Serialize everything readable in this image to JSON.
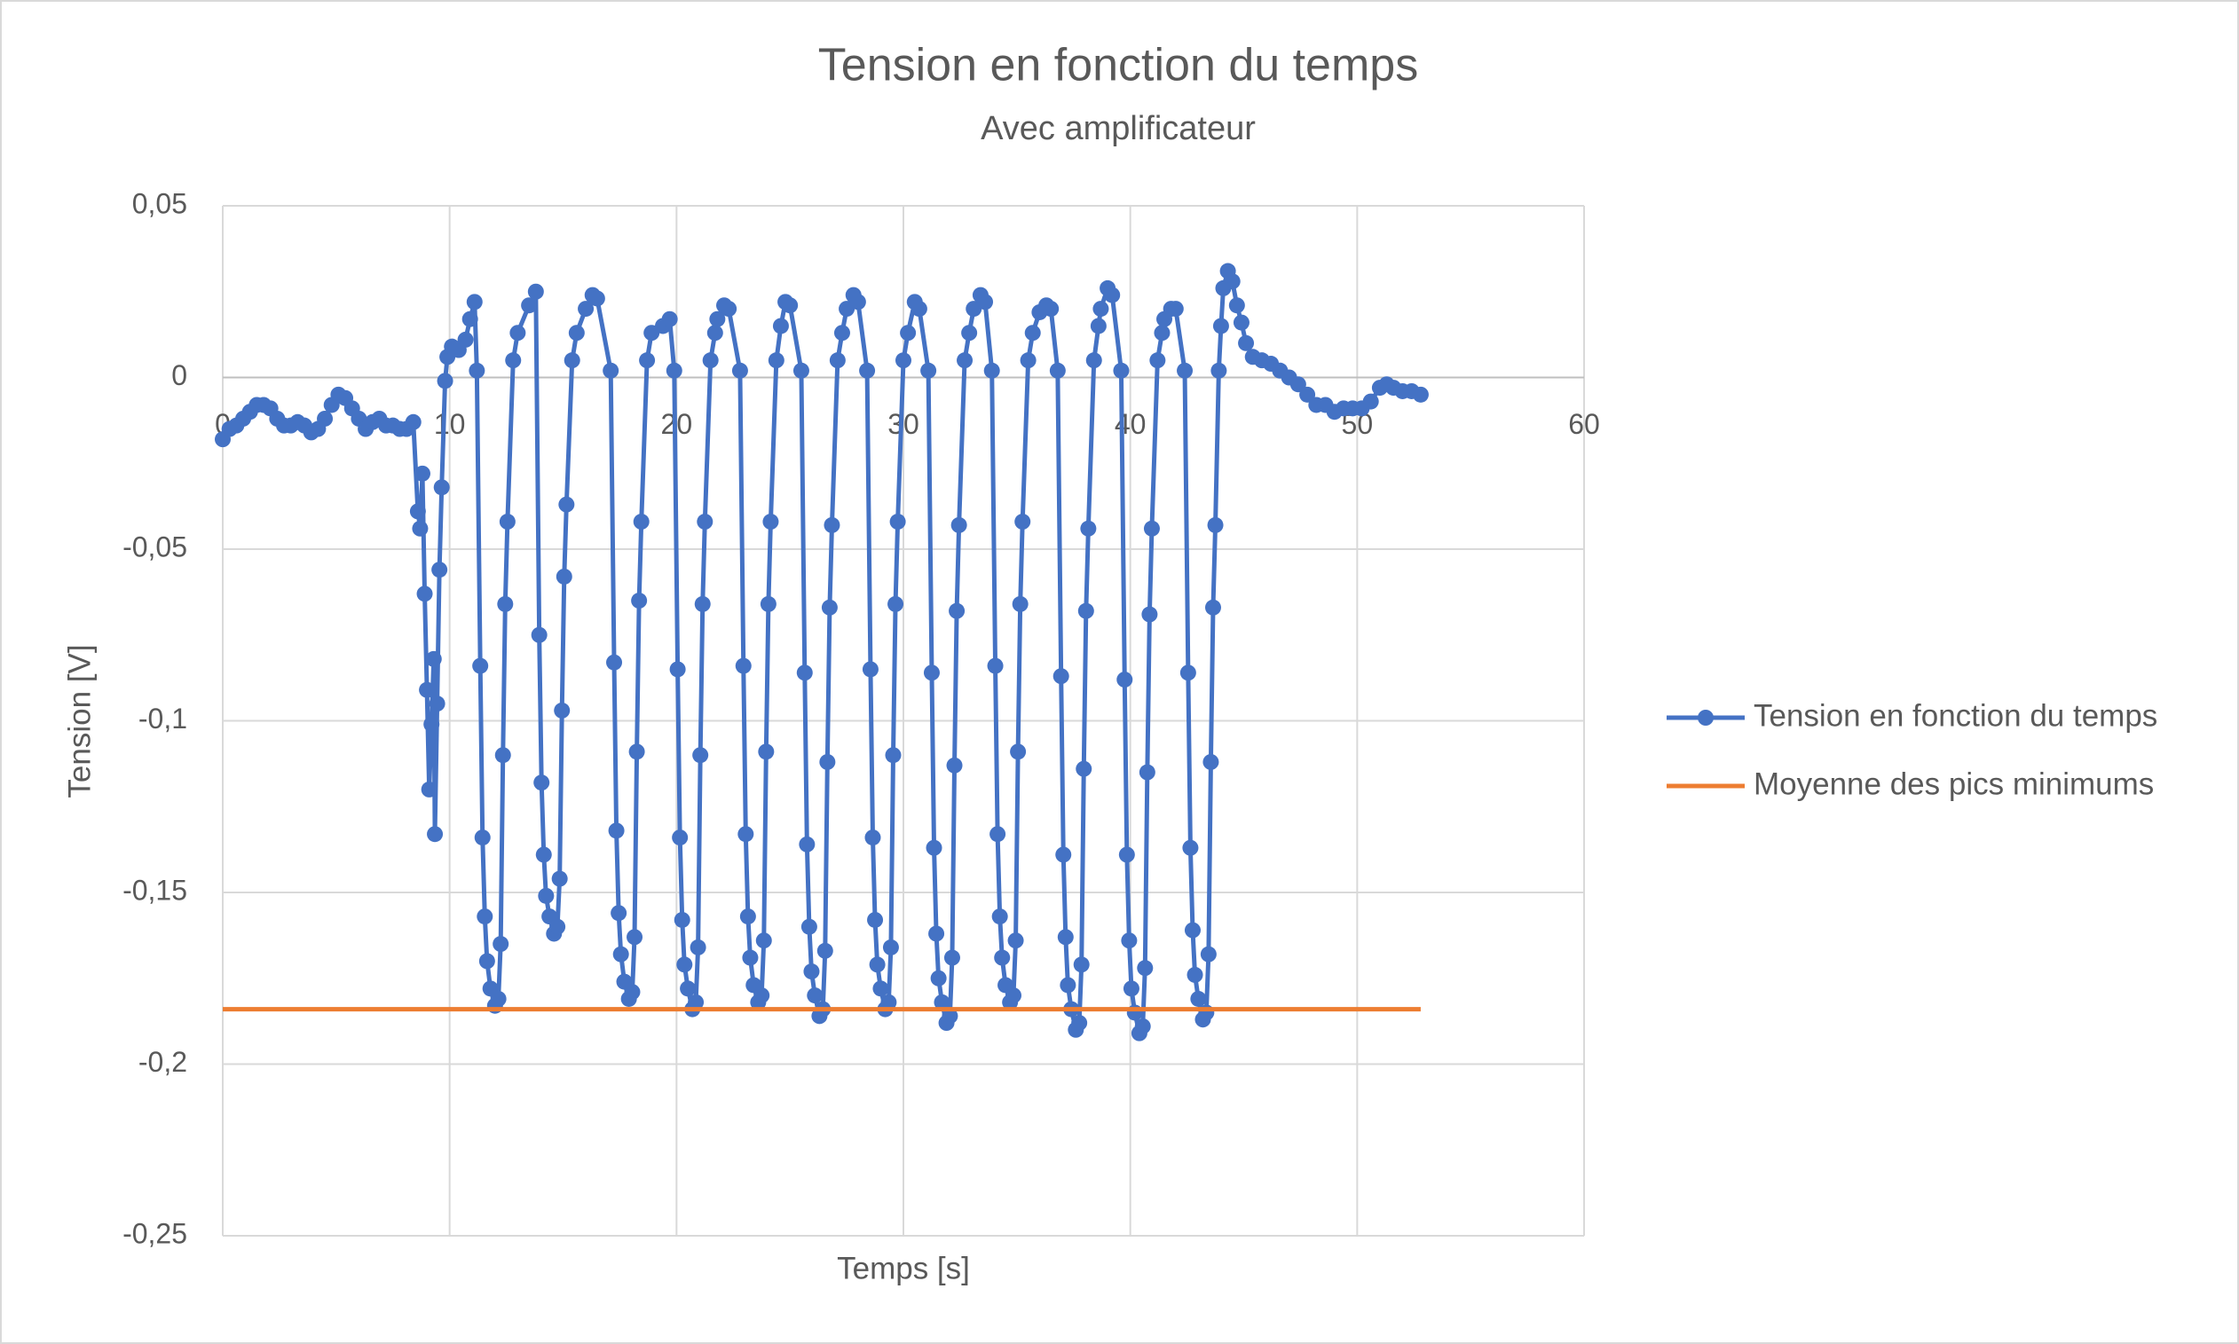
{
  "chart_data": {
    "type": "scatter",
    "title": "Tension en fonction du temps",
    "subtitle": "Avec amplificateur",
    "x_label": "Temps [s]",
    "y_label": "Tension [V]",
    "xlim": [
      0,
      60
    ],
    "xticks": [
      0,
      10,
      20,
      30,
      40,
      50,
      60
    ],
    "ylim": [
      -0.25,
      0.05
    ],
    "yticks": [
      {
        "value": 0.05,
        "label": "0,05"
      },
      0,
      {
        "value": -0.05,
        "label": "-0,05"
      },
      {
        "value": -0.1,
        "label": "-0,1"
      },
      {
        "value": -0.15,
        "label": "-0,15"
      },
      {
        "value": -0.2,
        "label": "-0,2"
      },
      {
        "value": -0.25,
        "label": "-0,25"
      }
    ],
    "grid": true,
    "legend": "right",
    "series": [
      {
        "name": "Tension en fonction du temps",
        "color": "#4472c4",
        "marker": true,
        "x": [
          0,
          0.3,
          0.6,
          0.9,
          1.2,
          1.5,
          1.8,
          2.1,
          2.4,
          2.7,
          3.0,
          3.3,
          3.6,
          3.9,
          4.2,
          4.5,
          4.8,
          5.1,
          5.4,
          5.7,
          6.0,
          6.3,
          6.6,
          6.9,
          7.2,
          7.5,
          7.8,
          8.1,
          8.4,
          8.6,
          8.7,
          8.8,
          8.9,
          9.0,
          9.1,
          9.2,
          9.3,
          9.35,
          9.45,
          9.55,
          9.65,
          9.8,
          9.9,
          10.1,
          10.4,
          10.7,
          10.9,
          11.1,
          11.2,
          11.35,
          11.45,
          11.55,
          11.65,
          11.8,
          12.0,
          12.15,
          12.25,
          12.35,
          12.45,
          12.55,
          12.8,
          13.0,
          13.5,
          13.8,
          13.95,
          14.05,
          14.15,
          14.25,
          14.4,
          14.6,
          14.75,
          14.85,
          14.95,
          15.05,
          15.15,
          15.4,
          15.6,
          16.0,
          16.3,
          16.5,
          17.1,
          17.25,
          17.35,
          17.45,
          17.55,
          17.7,
          17.9,
          18.05,
          18.15,
          18.25,
          18.35,
          18.45,
          18.7,
          18.9,
          19.4,
          19.7,
          19.9,
          20.05,
          20.15,
          20.25,
          20.35,
          20.5,
          20.7,
          20.85,
          20.95,
          21.05,
          21.15,
          21.25,
          21.5,
          21.7,
          21.8,
          22.1,
          22.3,
          22.8,
          22.95,
          23.05,
          23.15,
          23.25,
          23.4,
          23.6,
          23.75,
          23.85,
          23.95,
          24.05,
          24.15,
          24.4,
          24.6,
          24.8,
          25.0,
          25.5,
          25.65,
          25.75,
          25.85,
          25.95,
          26.1,
          26.3,
          26.45,
          26.55,
          26.65,
          26.75,
          26.85,
          27.1,
          27.3,
          27.5,
          27.8,
          28.0,
          28.4,
          28.55,
          28.65,
          28.75,
          28.85,
          29.0,
          29.2,
          29.35,
          29.45,
          29.55,
          29.65,
          29.75,
          30.0,
          30.2,
          30.5,
          30.7,
          31.1,
          31.25,
          31.35,
          31.45,
          31.55,
          31.7,
          31.9,
          32.05,
          32.15,
          32.25,
          32.35,
          32.45,
          32.7,
          32.9,
          33.1,
          33.4,
          33.6,
          33.9,
          34.05,
          34.15,
          34.25,
          34.35,
          34.5,
          34.7,
          34.85,
          34.95,
          35.05,
          35.15,
          35.25,
          35.5,
          35.7,
          36.0,
          36.3,
          36.5,
          36.8,
          36.95,
          37.05,
          37.15,
          37.25,
          37.4,
          37.6,
          37.75,
          37.85,
          37.95,
          38.05,
          38.15,
          38.4,
          38.6,
          38.7,
          39.0,
          39.2,
          39.6,
          39.75,
          39.85,
          39.95,
          40.05,
          40.2,
          40.4,
          40.55,
          40.65,
          40.75,
          40.85,
          40.95,
          41.2,
          41.4,
          41.5,
          41.8,
          42.0,
          42.4,
          42.55,
          42.65,
          42.75,
          42.85,
          43.0,
          43.2,
          43.35,
          43.45,
          43.55,
          43.65,
          43.75,
          43.9,
          44.0,
          44.1,
          44.3,
          44.5,
          44.7,
          44.9,
          45.1,
          45.4,
          45.8,
          46.2,
          46.6,
          47.0,
          47.4,
          47.8,
          48.2,
          48.6,
          49.0,
          49.4,
          49.8,
          50.2,
          50.6,
          51.0,
          51.3,
          51.6,
          52.0,
          52.4,
          52.8
        ],
        "values": [
          -0.018,
          -0.015,
          -0.014,
          -0.012,
          -0.01,
          -0.008,
          -0.008,
          -0.009,
          -0.012,
          -0.014,
          -0.014,
          -0.013,
          -0.014,
          -0.016,
          -0.015,
          -0.012,
          -0.008,
          -0.005,
          -0.006,
          -0.009,
          -0.012,
          -0.015,
          -0.013,
          -0.012,
          -0.014,
          -0.014,
          -0.015,
          -0.015,
          -0.013,
          -0.039,
          -0.044,
          -0.028,
          -0.063,
          -0.091,
          -0.12,
          -0.101,
          -0.082,
          -0.133,
          -0.095,
          -0.056,
          -0.032,
          -0.001,
          0.006,
          0.009,
          0.008,
          0.011,
          0.017,
          0.022,
          0.002,
          -0.084,
          -0.134,
          -0.157,
          -0.17,
          -0.178,
          -0.183,
          -0.181,
          -0.165,
          -0.11,
          -0.066,
          -0.042,
          0.005,
          0.013,
          0.021,
          0.025,
          -0.075,
          -0.118,
          -0.139,
          -0.151,
          -0.157,
          -0.162,
          -0.16,
          -0.146,
          -0.097,
          -0.058,
          -0.037,
          0.005,
          0.013,
          0.02,
          0.024,
          0.023,
          0.002,
          -0.083,
          -0.132,
          -0.156,
          -0.168,
          -0.176,
          -0.181,
          -0.179,
          -0.163,
          -0.109,
          -0.065,
          -0.042,
          0.005,
          0.013,
          0.015,
          0.017,
          0.002,
          -0.085,
          -0.134,
          -0.158,
          -0.171,
          -0.178,
          -0.184,
          -0.182,
          -0.166,
          -0.11,
          -0.066,
          -0.042,
          0.005,
          0.013,
          0.017,
          0.021,
          0.02,
          0.002,
          -0.084,
          -0.133,
          -0.157,
          -0.169,
          -0.177,
          -0.182,
          -0.18,
          -0.164,
          -0.109,
          -0.066,
          -0.042,
          0.005,
          0.015,
          0.022,
          0.021,
          0.002,
          -0.086,
          -0.136,
          -0.16,
          -0.173,
          -0.18,
          -0.186,
          -0.184,
          -0.167,
          -0.112,
          -0.067,
          -0.043,
          0.005,
          0.013,
          0.02,
          0.024,
          0.022,
          0.002,
          -0.085,
          -0.134,
          -0.158,
          -0.171,
          -0.178,
          -0.184,
          -0.182,
          -0.166,
          -0.11,
          -0.066,
          -0.042,
          0.005,
          0.013,
          0.022,
          0.02,
          0.002,
          -0.086,
          -0.137,
          -0.162,
          -0.175,
          -0.182,
          -0.188,
          -0.186,
          -0.169,
          -0.113,
          -0.068,
          -0.043,
          0.005,
          0.013,
          0.02,
          0.024,
          0.022,
          0.002,
          -0.084,
          -0.133,
          -0.157,
          -0.169,
          -0.177,
          -0.182,
          -0.18,
          -0.164,
          -0.109,
          -0.066,
          -0.042,
          0.005,
          0.013,
          0.019,
          0.021,
          0.02,
          0.002,
          -0.087,
          -0.139,
          -0.163,
          -0.177,
          -0.184,
          -0.19,
          -0.188,
          -0.171,
          -0.114,
          -0.068,
          -0.044,
          0.005,
          0.015,
          0.02,
          0.026,
          0.024,
          0.002,
          -0.088,
          -0.139,
          -0.164,
          -0.178,
          -0.185,
          -0.191,
          -0.189,
          -0.172,
          -0.115,
          -0.069,
          -0.044,
          0.005,
          0.013,
          0.017,
          0.02,
          0.02,
          0.002,
          -0.086,
          -0.137,
          -0.161,
          -0.174,
          -0.181,
          -0.187,
          -0.185,
          -0.168,
          -0.112,
          -0.067,
          -0.043,
          0.002,
          0.015,
          0.026,
          0.031,
          0.028,
          0.021,
          0.016,
          0.01,
          0.006,
          0.005,
          0.004,
          0.002,
          0,
          -0.002,
          -0.005,
          -0.008,
          -0.008,
          -0.01,
          -0.009,
          -0.009,
          -0.009,
          -0.007,
          -0.003,
          -0.002,
          -0.003,
          -0.004,
          -0.004,
          -0.005
        ]
      },
      {
        "name": "Moyenne des pics minimums",
        "color": "#ed7d31",
        "marker": false,
        "x": [
          0,
          52.8
        ],
        "values": [
          -0.184,
          -0.184
        ]
      }
    ]
  }
}
